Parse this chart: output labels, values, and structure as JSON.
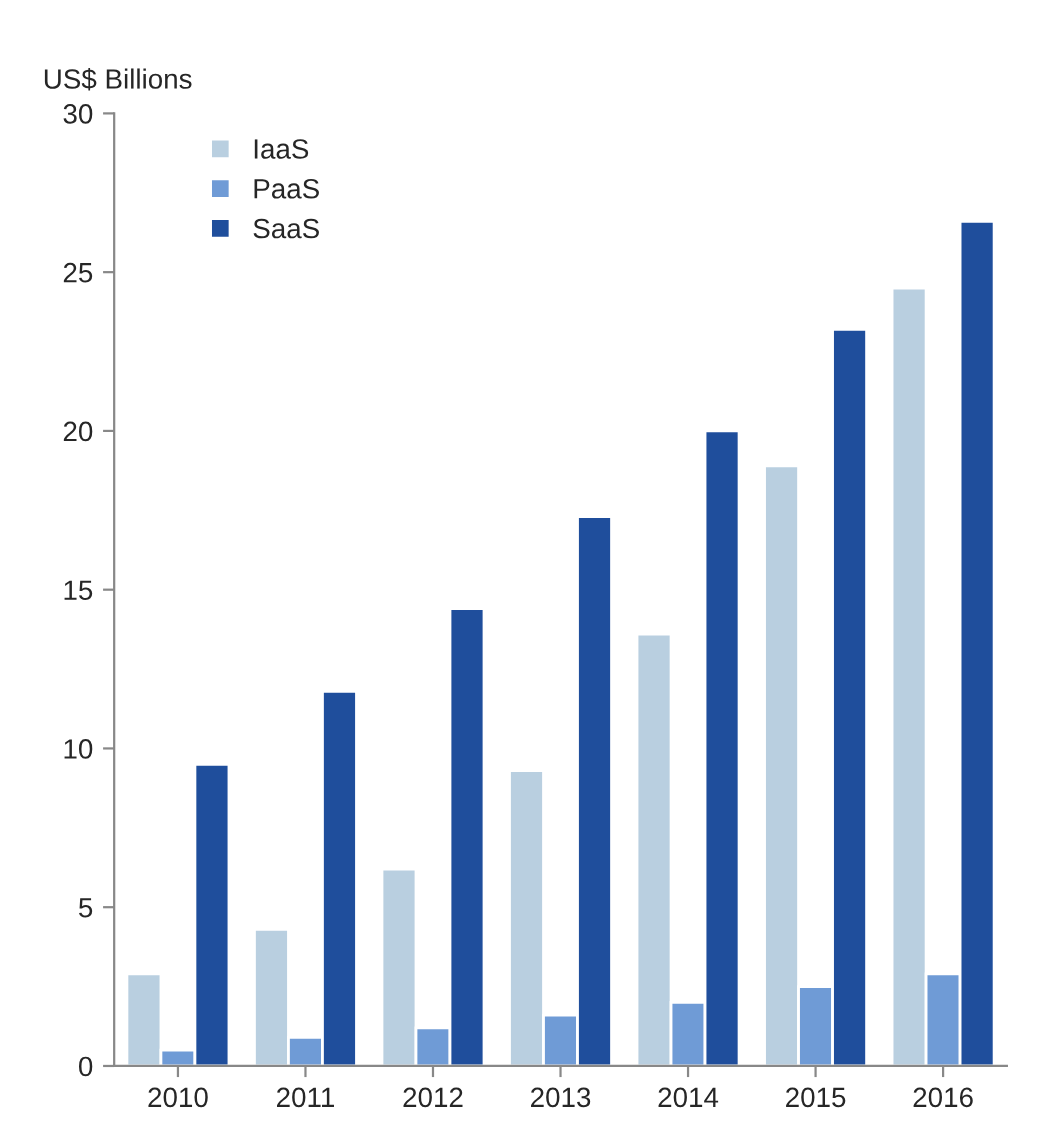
{
  "chart_data": {
    "type": "bar",
    "ylabel": "US$ Billions",
    "categories": [
      "2010",
      "2011",
      "2012",
      "2013",
      "2014",
      "2015",
      "2016"
    ],
    "series": [
      {
        "name": "IaaS",
        "color": "#b9cfe0",
        "values": [
          2.9,
          4.3,
          6.2,
          9.3,
          13.6,
          18.9,
          24.5
        ]
      },
      {
        "name": "PaaS",
        "color": "#6f9bd6",
        "values": [
          0.5,
          0.9,
          1.2,
          1.6,
          2.0,
          2.5,
          2.9
        ]
      },
      {
        "name": "SaaS",
        "color": "#1f4e9c",
        "values": [
          9.5,
          11.8,
          14.4,
          17.3,
          20.0,
          23.2,
          26.6
        ]
      }
    ],
    "ylim": [
      0,
      30
    ],
    "yticks": [
      0,
      5,
      10,
      15,
      20,
      25,
      30
    ],
    "grid": false,
    "legend": "top left"
  }
}
